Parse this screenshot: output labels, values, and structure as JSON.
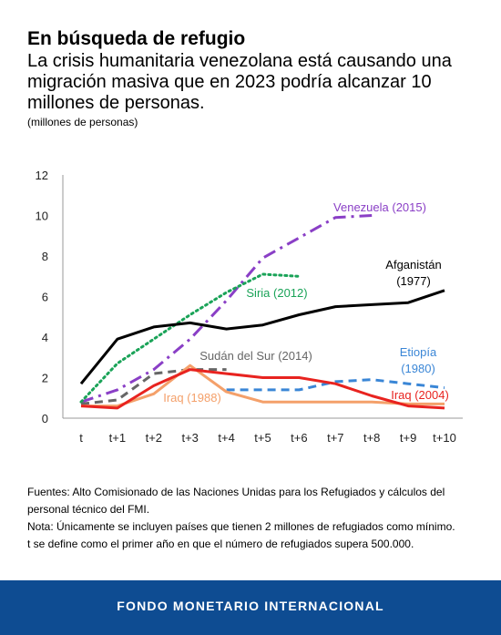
{
  "header": {
    "title": "En búsqueda de refugio",
    "subtitle": "La crisis humanitaria venezolana está causando una migración masiva que en 2023 podría alcanzar 10 millones de personas.",
    "units": "(millones de personas)"
  },
  "notes": {
    "source": "Fuentes: Alto Comisionado de las Naciones Unidas para los Refugiados y cálculos del personal técnico del FMI.",
    "note1": "Nota: Únicamente se incluyen países que tienen 2 millones de refugiados como mínimo.",
    "note2": "t se define como el primer año en que el número de refugiados supera 500.000."
  },
  "footer": {
    "org": "FONDO MONETARIO INTERNACIONAL"
  },
  "chart_data": {
    "type": "line",
    "title": "En búsqueda de refugio",
    "ylabel": "(millones de personas)",
    "x": [
      "t",
      "t+1",
      "t+2",
      "t+3",
      "t+4",
      "t+5",
      "t+6",
      "t+7",
      "t+8",
      "t+9",
      "t+10"
    ],
    "ylim": [
      0,
      12
    ],
    "yticks": [
      0,
      2,
      4,
      6,
      8,
      10,
      12
    ],
    "grid": false,
    "series": [
      {
        "name": "Venezuela (2015)",
        "color": "#8a3fc6",
        "dash": "dashdot",
        "values": [
          0.8,
          1.4,
          2.4,
          3.9,
          5.8,
          7.9,
          8.9,
          9.9,
          10.0,
          null,
          null
        ]
      },
      {
        "name": "Siria (2012)",
        "color": "#1aa358",
        "dash": "dotted",
        "values": [
          0.8,
          2.7,
          3.9,
          5.1,
          6.2,
          7.1,
          7.0,
          null,
          null,
          null,
          null
        ]
      },
      {
        "name": "Afganistán (1977)",
        "color": "#000000",
        "dash": "solid",
        "values": [
          1.7,
          3.9,
          4.5,
          4.7,
          4.4,
          4.6,
          5.1,
          5.5,
          5.6,
          5.7,
          6.3
        ]
      },
      {
        "name": "Sudán del Sur (2014)",
        "color": "#666666",
        "dash": "dashed",
        "values": [
          0.7,
          0.9,
          2.2,
          2.4,
          2.4,
          null,
          null,
          null,
          null,
          null,
          null
        ]
      },
      {
        "name": "Etiopía (1980)",
        "color": "#3a86d6",
        "dash": "dashed",
        "values": [
          null,
          null,
          null,
          null,
          1.4,
          1.4,
          1.4,
          1.8,
          1.9,
          1.7,
          1.5
        ]
      },
      {
        "name": "Iraq (1988)",
        "color": "#f4a06a",
        "dash": "solid",
        "values": [
          0.6,
          0.6,
          1.2,
          2.6,
          1.3,
          0.8,
          0.8,
          0.8,
          0.8,
          0.7,
          0.7
        ]
      },
      {
        "name": "Iraq (2004)",
        "color": "#e8231f",
        "dash": "solid",
        "values": [
          0.6,
          0.5,
          1.6,
          2.4,
          2.2,
          2.0,
          2.0,
          1.7,
          1.1,
          0.6,
          0.5
        ]
      }
    ]
  }
}
